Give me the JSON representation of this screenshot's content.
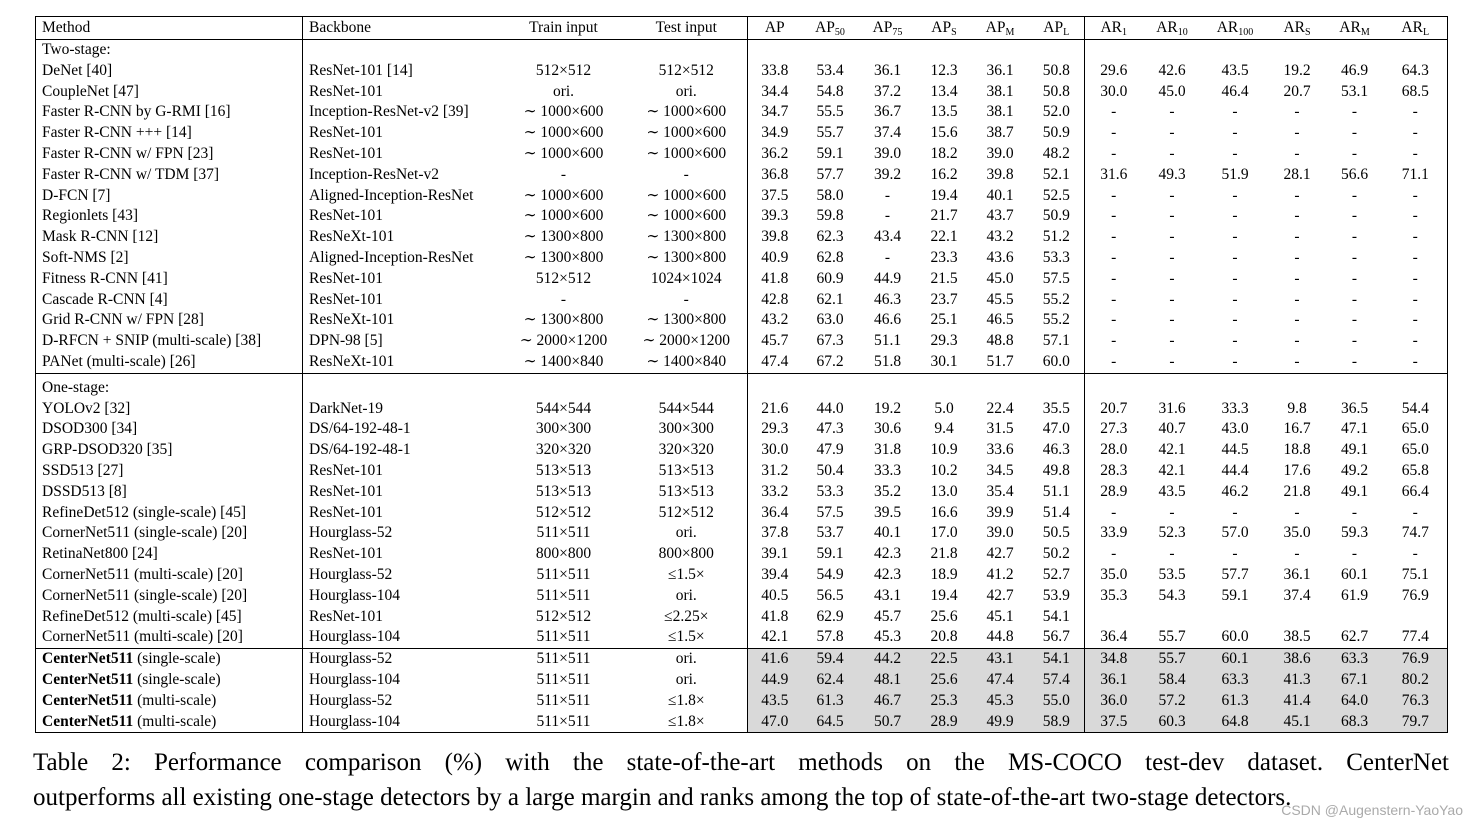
{
  "table": {
    "headers": [
      "Method",
      "Backbone",
      "Train input",
      "Test input",
      "AP",
      "AP",
      "AP",
      "AP",
      "AP",
      "AP",
      "AR",
      "AR",
      "AR",
      "AR",
      "AR",
      "AR"
    ],
    "header_subs": [
      "",
      "",
      "",
      "",
      "",
      "50",
      "75",
      "S",
      "M",
      "L",
      "1",
      "10",
      "100",
      "S",
      "M",
      "L"
    ],
    "sections": [
      {
        "title": "Two-stage:",
        "rows": [
          [
            "DeNet [40]",
            "ResNet-101 [14]",
            "512×512",
            "512×512",
            "33.8",
            "53.4",
            "36.1",
            "12.3",
            "36.1",
            "50.8",
            "29.6",
            "42.6",
            "43.5",
            "19.2",
            "46.9",
            "64.3"
          ],
          [
            "CoupleNet [47]",
            "ResNet-101",
            "ori.",
            "ori.",
            "34.4",
            "54.8",
            "37.2",
            "13.4",
            "38.1",
            "50.8",
            "30.0",
            "45.0",
            "46.4",
            "20.7",
            "53.1",
            "68.5"
          ],
          [
            "Faster R-CNN by G-RMI [16]",
            "Inception-ResNet-v2 [39]",
            "∼ 1000×600",
            "∼ 1000×600",
            "34.7",
            "55.5",
            "36.7",
            "13.5",
            "38.1",
            "52.0",
            "-",
            "-",
            "-",
            "-",
            "-",
            "-"
          ],
          [
            "Faster R-CNN +++ [14]",
            "ResNet-101",
            "∼ 1000×600",
            "∼ 1000×600",
            "34.9",
            "55.7",
            "37.4",
            "15.6",
            "38.7",
            "50.9",
            "-",
            "-",
            "-",
            "-",
            "-",
            "-"
          ],
          [
            "Faster R-CNN w/ FPN [23]",
            "ResNet-101",
            "∼ 1000×600",
            "∼ 1000×600",
            "36.2",
            "59.1",
            "39.0",
            "18.2",
            "39.0",
            "48.2",
            "-",
            "-",
            "-",
            "-",
            "-",
            "-"
          ],
          [
            "Faster R-CNN w/ TDM [37]",
            "Inception-ResNet-v2",
            "-",
            "-",
            "36.8",
            "57.7",
            "39.2",
            "16.2",
            "39.8",
            "52.1",
            "31.6",
            "49.3",
            "51.9",
            "28.1",
            "56.6",
            "71.1"
          ],
          [
            "D-FCN [7]",
            "Aligned-Inception-ResNet",
            "∼ 1000×600",
            "∼ 1000×600",
            "37.5",
            "58.0",
            "-",
            "19.4",
            "40.1",
            "52.5",
            "-",
            "-",
            "-",
            "-",
            "-",
            "-"
          ],
          [
            "Regionlets [43]",
            "ResNet-101",
            "∼ 1000×600",
            "∼ 1000×600",
            "39.3",
            "59.8",
            "-",
            "21.7",
            "43.7",
            "50.9",
            "-",
            "-",
            "-",
            "-",
            "-",
            "-"
          ],
          [
            "Mask R-CNN [12]",
            "ResNeXt-101",
            "∼ 1300×800",
            "∼ 1300×800",
            "39.8",
            "62.3",
            "43.4",
            "22.1",
            "43.2",
            "51.2",
            "-",
            "-",
            "-",
            "-",
            "-",
            "-"
          ],
          [
            "Soft-NMS [2]",
            "Aligned-Inception-ResNet",
            "∼ 1300×800",
            "∼ 1300×800",
            "40.9",
            "62.8",
            "-",
            "23.3",
            "43.6",
            "53.3",
            "-",
            "-",
            "-",
            "-",
            "-",
            "-"
          ],
          [
            "Fitness R-CNN [41]",
            "ResNet-101",
            "512×512",
            "1024×1024",
            "41.8",
            "60.9",
            "44.9",
            "21.5",
            "45.0",
            "57.5",
            "-",
            "-",
            "-",
            "-",
            "-",
            "-"
          ],
          [
            "Cascade R-CNN [4]",
            "ResNet-101",
            "-",
            "-",
            "42.8",
            "62.1",
            "46.3",
            "23.7",
            "45.5",
            "55.2",
            "-",
            "-",
            "-",
            "-",
            "-",
            "-"
          ],
          [
            "Grid R-CNN w/ FPN [28]",
            "ResNeXt-101",
            "∼ 1300×800",
            "∼ 1300×800",
            "43.2",
            "63.0",
            "46.6",
            "25.1",
            "46.5",
            "55.2",
            "-",
            "-",
            "-",
            "-",
            "-",
            "-"
          ],
          [
            "D-RFCN + SNIP (multi-scale) [38]",
            "DPN-98 [5]",
            "∼ 2000×1200",
            "∼ 2000×1200",
            "45.7",
            "67.3",
            "51.1",
            "29.3",
            "48.8",
            "57.1",
            "-",
            "-",
            "-",
            "-",
            "-",
            "-"
          ],
          [
            "PANet (multi-scale) [26]",
            "ResNeXt-101",
            "∼ 1400×840",
            "∼ 1400×840",
            "47.4",
            "67.2",
            "51.8",
            "30.1",
            "51.7",
            "60.0",
            "-",
            "-",
            "-",
            "-",
            "-",
            "-"
          ]
        ],
        "bold_cells": [
          [
            5,
            10
          ],
          [
            5,
            11
          ],
          [
            5,
            12
          ],
          [
            5,
            13
          ],
          [
            5,
            14
          ],
          [
            5,
            15
          ],
          [
            13,
            5
          ],
          [
            14,
            4
          ],
          [
            14,
            6
          ],
          [
            14,
            7
          ],
          [
            14,
            8
          ],
          [
            14,
            9
          ]
        ]
      },
      {
        "title": "One-stage:",
        "rows": [
          [
            "YOLOv2 [32]",
            "DarkNet-19",
            "544×544",
            "544×544",
            "21.6",
            "44.0",
            "19.2",
            "5.0",
            "22.4",
            "35.5",
            "20.7",
            "31.6",
            "33.3",
            "9.8",
            "36.5",
            "54.4"
          ],
          [
            "DSOD300 [34]",
            "DS/64-192-48-1",
            "300×300",
            "300×300",
            "29.3",
            "47.3",
            "30.6",
            "9.4",
            "31.5",
            "47.0",
            "27.3",
            "40.7",
            "43.0",
            "16.7",
            "47.1",
            "65.0"
          ],
          [
            "GRP-DSOD320 [35]",
            "DS/64-192-48-1",
            "320×320",
            "320×320",
            "30.0",
            "47.9",
            "31.8",
            "10.9",
            "33.6",
            "46.3",
            "28.0",
            "42.1",
            "44.5",
            "18.8",
            "49.1",
            "65.0"
          ],
          [
            "SSD513 [27]",
            "ResNet-101",
            "513×513",
            "513×513",
            "31.2",
            "50.4",
            "33.3",
            "10.2",
            "34.5",
            "49.8",
            "28.3",
            "42.1",
            "44.4",
            "17.6",
            "49.2",
            "65.8"
          ],
          [
            "DSSD513 [8]",
            "ResNet-101",
            "513×513",
            "513×513",
            "33.2",
            "53.3",
            "35.2",
            "13.0",
            "35.4",
            "51.1",
            "28.9",
            "43.5",
            "46.2",
            "21.8",
            "49.1",
            "66.4"
          ],
          [
            "RefineDet512 (single-scale) [45]",
            "ResNet-101",
            "512×512",
            "512×512",
            "36.4",
            "57.5",
            "39.5",
            "16.6",
            "39.9",
            "51.4",
            "-",
            "-",
            "-",
            "-",
            "-",
            "-"
          ],
          [
            "CornerNet511 (single-scale) [20]",
            "Hourglass-52",
            "511×511",
            "ori.",
            "37.8",
            "53.7",
            "40.1",
            "17.0",
            "39.0",
            "50.5",
            "33.9",
            "52.3",
            "57.0",
            "35.0",
            "59.3",
            "74.7"
          ],
          [
            "RetinaNet800 [24]",
            "ResNet-101",
            "800×800",
            "800×800",
            "39.1",
            "59.1",
            "42.3",
            "21.8",
            "42.7",
            "50.2",
            "-",
            "-",
            "-",
            "-",
            "-",
            "-"
          ],
          [
            "CornerNet511 (multi-scale) [20]",
            "Hourglass-52",
            "511×511",
            "≤1.5×",
            "39.4",
            "54.9",
            "42.3",
            "18.9",
            "41.2",
            "52.7",
            "35.0",
            "53.5",
            "57.7",
            "36.1",
            "60.1",
            "75.1"
          ],
          [
            "CornerNet511 (single-scale) [20]",
            "Hourglass-104",
            "511×511",
            "ori.",
            "40.5",
            "56.5",
            "43.1",
            "19.4",
            "42.7",
            "53.9",
            "35.3",
            "54.3",
            "59.1",
            "37.4",
            "61.9",
            "76.9"
          ],
          [
            "RefineDet512 (multi-scale) [45]",
            "ResNet-101",
            "512×512",
            "≤2.25×",
            "41.8",
            "62.9",
            "45.7",
            "25.6",
            "45.1",
            "54.1",
            "",
            "",
            "",
            "",
            "",
            ""
          ],
          [
            "CornerNet511 (multi-scale) [20]",
            "Hourglass-104",
            "511×511",
            "≤1.5×",
            "42.1",
            "57.8",
            "45.3",
            "20.8",
            "44.8",
            "56.7",
            "36.4",
            "55.7",
            "60.0",
            "38.5",
            "62.7",
            "77.4"
          ]
        ]
      },
      {
        "title": "",
        "own": true,
        "rows": [
          [
            "CenterNet511",
            "Hourglass-52",
            "511×511",
            "ori.",
            "41.6",
            "59.4",
            "44.2",
            "22.5",
            "43.1",
            "54.1",
            "34.8",
            "55.7",
            "60.1",
            "38.6",
            "63.3",
            "76.9"
          ],
          [
            "CenterNet511",
            "Hourglass-104",
            "511×511",
            "ori.",
            "44.9",
            "62.4",
            "48.1",
            "25.6",
            "47.4",
            "57.4",
            "36.1",
            "58.4",
            "63.3",
            "41.3",
            "67.1",
            "80.2"
          ],
          [
            "CenterNet511",
            "Hourglass-52",
            "511×511",
            "≤1.8×",
            "43.5",
            "61.3",
            "46.7",
            "25.3",
            "45.3",
            "55.0",
            "36.0",
            "57.2",
            "61.3",
            "41.4",
            "64.0",
            "76.3"
          ],
          [
            "CenterNet511",
            "Hourglass-104",
            "511×511",
            "≤1.8×",
            "47.0",
            "64.5",
            "50.7",
            "28.9",
            "49.9",
            "58.9",
            "37.5",
            "60.3",
            "64.8",
            "45.1",
            "68.3",
            "79.7"
          ]
        ],
        "suffixes": [
          " (single-scale)",
          " (single-scale)",
          " (multi-scale)",
          " (multi-scale)"
        ],
        "bold_cells": [
          [
            3,
            4
          ],
          [
            3,
            5
          ],
          [
            3,
            6
          ],
          [
            3,
            7
          ],
          [
            3,
            8
          ],
          [
            3,
            9
          ],
          [
            3,
            10
          ],
          [
            3,
            11
          ],
          [
            3,
            12
          ],
          [
            3,
            13
          ],
          [
            3,
            14
          ],
          [
            3,
            15
          ]
        ]
      }
    ]
  },
  "caption": {
    "line1": "Table 2: Performance comparison (%) with the state-of-the-art methods on the MS-COCO test-dev dataset. CenterNet",
    "line2": "outperforms all existing one-stage detectors by a large margin and ranks among the top of state-of-the-art two-stage detectors."
  },
  "watermark": "CSDN @Augenstern-YaoYao",
  "colors": {
    "shade": "#d9d9d9"
  }
}
